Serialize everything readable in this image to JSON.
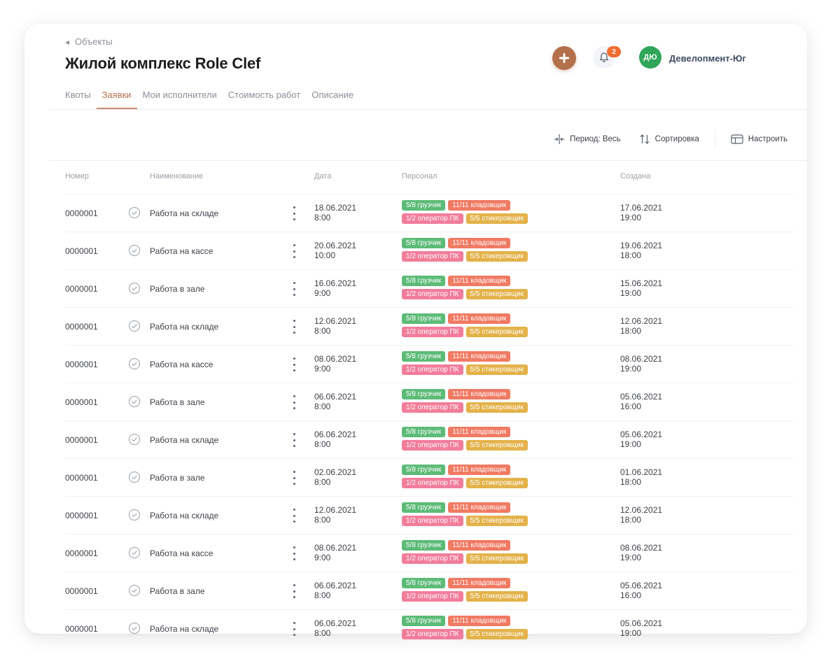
{
  "breadcrumb": {
    "back_label": "Объекты"
  },
  "page": {
    "title": "Жилой комплекс Role Clef"
  },
  "header": {
    "notifications_count": "2",
    "user_initials": "ДЮ",
    "user_name": "Девелопмент-Юг"
  },
  "colors": {
    "accent": "#b3704b",
    "green": "#2fa65a",
    "tag_green": "#5dbb78",
    "tag_red": "#f07a63",
    "tag_pink": "#f27d9b",
    "tag_yellow": "#e3b24a"
  },
  "tabs": [
    {
      "label": "Квоты",
      "active": false
    },
    {
      "label": "Заявки",
      "active": true
    },
    {
      "label": "Мои исполнители",
      "active": false
    },
    {
      "label": "Стоимость работ",
      "active": false
    },
    {
      "label": "Описание",
      "active": false
    }
  ],
  "toolbar": {
    "period_label": "Период: Весь",
    "sort_label": "Сортировка",
    "settings_label": "Настроить"
  },
  "table": {
    "headers": {
      "number": "Номер",
      "name": "Наименование",
      "date": "Дата",
      "staff": "Персонал",
      "created": "Создана"
    },
    "tags": [
      {
        "text": "5/8 грузчик",
        "color": "green",
        "line": 0
      },
      {
        "text": "11/11 кладовщик",
        "color": "red",
        "line": 0
      },
      {
        "text": "1/2 оператор ПК",
        "color": "pink",
        "line": 1
      },
      {
        "text": "5/5 стикеровщик",
        "color": "yellow",
        "line": 1
      }
    ],
    "rows": [
      {
        "number": "0000001",
        "name": "Работа на складе",
        "date": "18.06.2021",
        "time": "8:00",
        "created_date": "17.06.2021",
        "created_time": "19:00"
      },
      {
        "number": "0000001",
        "name": "Работа на кассе",
        "date": "20.06.2021",
        "time": "10:00",
        "created_date": "19.06.2021",
        "created_time": "18:00"
      },
      {
        "number": "0000001",
        "name": "Работа в зале",
        "date": "16.06.2021",
        "time": "9:00",
        "created_date": "15.06.2021",
        "created_time": "19:00"
      },
      {
        "number": "0000001",
        "name": "Работа на складе",
        "date": "12.06.2021",
        "time": "8:00",
        "created_date": "12.06.2021",
        "created_time": "18:00"
      },
      {
        "number": "0000001",
        "name": "Работа на кассе",
        "date": "08.06.2021",
        "time": "9:00",
        "created_date": "08.06.2021",
        "created_time": "19:00"
      },
      {
        "number": "0000001",
        "name": "Работа в зале",
        "date": "06.06.2021",
        "time": "8:00",
        "created_date": "05.06.2021",
        "created_time": "16:00"
      },
      {
        "number": "0000001",
        "name": "Работа на складе",
        "date": "06.06.2021",
        "time": "8:00",
        "created_date": "05.06.2021",
        "created_time": "19:00"
      },
      {
        "number": "0000001",
        "name": "Работа в зале",
        "date": "02.06.2021",
        "time": "8:00",
        "created_date": "01.06.2021",
        "created_time": "18:00"
      },
      {
        "number": "0000001",
        "name": "Работа на складе",
        "date": "12.06.2021",
        "time": "8:00",
        "created_date": "12.06.2021",
        "created_time": "18:00"
      },
      {
        "number": "0000001",
        "name": "Работа на кассе",
        "date": "08.06.2021",
        "time": "9:00",
        "created_date": "08.06.2021",
        "created_time": "19:00"
      },
      {
        "number": "0000001",
        "name": "Работа в зале",
        "date": "06.06.2021",
        "time": "8:00",
        "created_date": "05.06.2021",
        "created_time": "16:00"
      },
      {
        "number": "0000001",
        "name": "Работа на складе",
        "date": "06.06.2021",
        "time": "8:00",
        "created_date": "05.06.2021",
        "created_time": "19:00"
      }
    ]
  }
}
